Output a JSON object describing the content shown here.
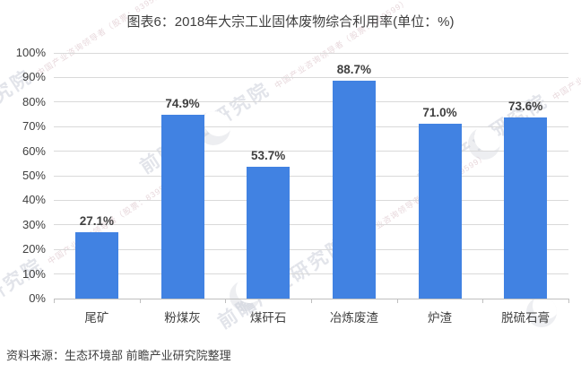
{
  "title": "图表6：2018年大宗工业固体废物综合利用率(单位：%)",
  "source": "资料来源：生态环境部 前瞻产业研究院整理",
  "watermark": {
    "text": "前瞻产业研究院",
    "subtext": "中国产业咨询领导者（股票：839599）"
  },
  "colors": {
    "bar": "#4182E2",
    "gridline": "#d9d9d9",
    "axis": "#bfbfbf",
    "text": "#404040"
  },
  "chart_data": {
    "type": "bar",
    "title": "2018年大宗工业固体废物综合利用率",
    "unit": "%",
    "categories": [
      "尾矿",
      "粉煤灰",
      "煤矸石",
      "冶炼废渣",
      "炉渣",
      "脱硫石膏"
    ],
    "values": [
      27.1,
      74.9,
      53.7,
      88.7,
      71.0,
      73.6
    ],
    "value_labels": [
      "27.1%",
      "74.9%",
      "53.7%",
      "88.7%",
      "71.0%",
      "73.6%"
    ],
    "ylim": [
      0,
      100
    ],
    "ytick_step": 10,
    "ytick_labels": [
      "0%",
      "10%",
      "20%",
      "30%",
      "40%",
      "50%",
      "60%",
      "70%",
      "80%",
      "90%",
      "100%"
    ],
    "grid": true,
    "legend": "none",
    "bar_color": "#4182E2"
  }
}
